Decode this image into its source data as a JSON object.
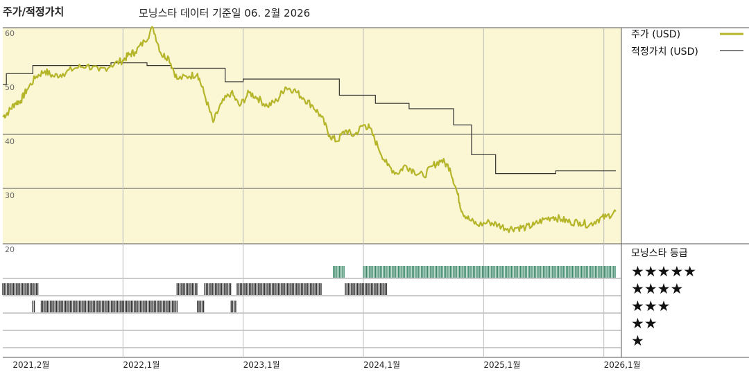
{
  "header": {
    "left_title": "주가/적정가치",
    "subtitle": "모닝스타 데이터 기준일 06. 2월 2026"
  },
  "legend": {
    "price_label": "주가 (USD)",
    "fair_value_label": "적정가치 (USD)",
    "rating_title": "모닝스타 등급",
    "rating_rows": [
      "★★★★★",
      "★★★★",
      "★★★",
      "★★",
      "★"
    ]
  },
  "colors": {
    "price": "#b5b52a",
    "fair_value": "#333333",
    "panel_bg": "#fbf6d3",
    "rating_5": "#3d8a6b",
    "rating_other": "#333333",
    "grid": "#555555"
  },
  "chart_data": {
    "type": "line",
    "y_ticks": [
      "60",
      "50",
      "40",
      "30",
      "20"
    ],
    "ylim": [
      20,
      60
    ],
    "x_ticks": [
      {
        "label": "2021,2월",
        "t": 2021.083
      },
      {
        "label": "2022,1월",
        "t": 2022.0
      },
      {
        "label": "2023,1월",
        "t": 2023.0
      },
      {
        "label": "2024,1월",
        "t": 2024.0
      },
      {
        "label": "2025,1월",
        "t": 2025.0
      },
      {
        "label": "2026,1월",
        "t": 2026.0
      }
    ],
    "xlim": [
      2021.0,
      2026.1
    ],
    "series": [
      {
        "name": "주가 (USD)",
        "points": [
          [
            2021.0,
            43.5
          ],
          [
            2021.05,
            44.5
          ],
          [
            2021.1,
            46.0
          ],
          [
            2021.15,
            46.5
          ],
          [
            2021.2,
            48.5
          ],
          [
            2021.28,
            51.0
          ],
          [
            2021.35,
            52.0
          ],
          [
            2021.42,
            51.0
          ],
          [
            2021.5,
            51.5
          ],
          [
            2021.6,
            52.5
          ],
          [
            2021.7,
            53.0
          ],
          [
            2021.8,
            52.0
          ],
          [
            2021.9,
            53.0
          ],
          [
            2022.0,
            54.0
          ],
          [
            2022.05,
            55.0
          ],
          [
            2022.1,
            55.5
          ],
          [
            2022.18,
            57.5
          ],
          [
            2022.25,
            60.0
          ],
          [
            2022.32,
            55.0
          ],
          [
            2022.38,
            54.5
          ],
          [
            2022.45,
            50.5
          ],
          [
            2022.55,
            51.0
          ],
          [
            2022.62,
            51.5
          ],
          [
            2022.68,
            47.5
          ],
          [
            2022.75,
            42.5
          ],
          [
            2022.82,
            46.0
          ],
          [
            2022.9,
            48.0
          ],
          [
            2022.97,
            45.5
          ],
          [
            2023.05,
            48.0
          ],
          [
            2023.12,
            47.0
          ],
          [
            2023.2,
            45.5
          ],
          [
            2023.28,
            46.5
          ],
          [
            2023.35,
            49.0
          ],
          [
            2023.42,
            48.5
          ],
          [
            2023.5,
            47.0
          ],
          [
            2023.58,
            45.5
          ],
          [
            2023.65,
            43.5
          ],
          [
            2023.72,
            40.0
          ],
          [
            2023.78,
            39.0
          ],
          [
            2023.85,
            41.0
          ],
          [
            2023.92,
            40.0
          ],
          [
            2024.0,
            42.0
          ],
          [
            2024.05,
            41.5
          ],
          [
            2024.12,
            38.0
          ],
          [
            2024.2,
            34.5
          ],
          [
            2024.28,
            33.0
          ],
          [
            2024.35,
            34.5
          ],
          [
            2024.42,
            33.5
          ],
          [
            2024.5,
            32.5
          ],
          [
            2024.58,
            34.5
          ],
          [
            2024.65,
            35.5
          ],
          [
            2024.72,
            34.0
          ],
          [
            2024.78,
            29.5
          ],
          [
            2024.82,
            26.0
          ],
          [
            2024.88,
            24.5
          ],
          [
            2024.95,
            23.5
          ],
          [
            2025.05,
            24.0
          ],
          [
            2025.12,
            23.5
          ],
          [
            2025.2,
            22.8
          ],
          [
            2025.28,
            23.0
          ],
          [
            2025.35,
            23.0
          ],
          [
            2025.42,
            23.5
          ],
          [
            2025.5,
            24.5
          ],
          [
            2025.58,
            25.0
          ],
          [
            2025.65,
            24.5
          ],
          [
            2025.72,
            24.0
          ],
          [
            2025.8,
            24.0
          ],
          [
            2025.88,
            23.5
          ],
          [
            2025.95,
            24.5
          ],
          [
            2026.02,
            25.0
          ],
          [
            2026.1,
            26.0
          ]
        ]
      },
      {
        "name": "적정가치 (USD)",
        "steps": [
          [
            2021.0,
            49.5
          ],
          [
            2021.03,
            51.5
          ],
          [
            2021.25,
            53.0
          ],
          [
            2021.9,
            53.5
          ],
          [
            2022.2,
            53.0
          ],
          [
            2022.4,
            52.5
          ],
          [
            2022.85,
            50.0
          ],
          [
            2023.0,
            50.5
          ],
          [
            2023.8,
            47.5
          ],
          [
            2024.1,
            46.0
          ],
          [
            2024.38,
            45.0
          ],
          [
            2024.75,
            42.0
          ],
          [
            2024.9,
            36.5
          ],
          [
            2025.1,
            33.0
          ],
          [
            2025.6,
            33.5
          ],
          [
            2026.1,
            33.5
          ]
        ]
      }
    ],
    "rating_bands": [
      {
        "stars": 5,
        "segments": [
          [
            2023.75,
            2023.85
          ],
          [
            2024.0,
            2026.1
          ]
        ]
      },
      {
        "stars": 4,
        "segments": [
          [
            2021.0,
            2021.3
          ],
          [
            2022.45,
            2022.62
          ],
          [
            2022.68,
            2022.9
          ],
          [
            2022.95,
            2023.65
          ],
          [
            2023.85,
            2024.2
          ]
        ]
      },
      {
        "stars": 3,
        "segments": [
          [
            2021.25,
            2021.27
          ],
          [
            2021.32,
            2022.45
          ],
          [
            2022.62,
            2022.68
          ],
          [
            2022.9,
            2022.95
          ]
        ]
      },
      {
        "stars": 2,
        "segments": []
      },
      {
        "stars": 1,
        "segments": []
      }
    ]
  }
}
